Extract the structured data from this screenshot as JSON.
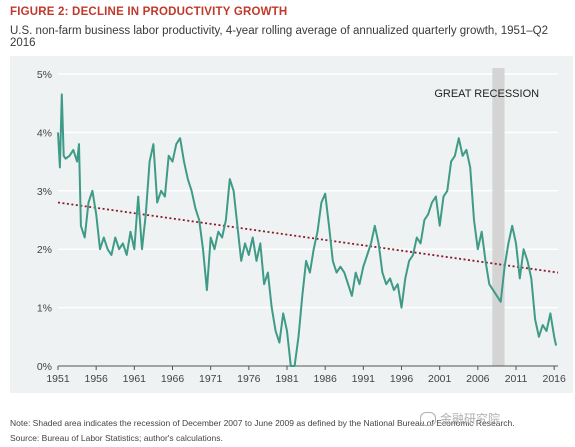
{
  "figure": {
    "title": "FIGURE 2: DECLINE IN PRODUCTIVITY GROWTH",
    "subtitle": "U.S. non-farm business labor productivity, 4-year rolling average of annualized quarterly growth, 1951–Q2 2016",
    "note": "Note: Shaded area indicates the recession of December 2007 to June 2009 as defined by the National Bureau of Economic Research.",
    "source": "Source: Bureau of Labor Statistics; author's calculations.",
    "watermark": "金融研究院"
  },
  "colors": {
    "line": "#3f9b87",
    "trend": "#8b1a2b",
    "recession": "#d4d4d4",
    "panel": "#eef2f2",
    "grid": "#ffffff",
    "title": "#c0392b"
  },
  "chart_data": {
    "type": "line",
    "title": "FIGURE 2: DECLINE IN PRODUCTIVITY GROWTH",
    "xlabel": "",
    "ylabel": "",
    "xlim": [
      1951,
      2016.5
    ],
    "ylim": [
      0,
      5
    ],
    "x_ticks": [
      1951,
      1956,
      1961,
      1966,
      1971,
      1976,
      1981,
      1986,
      1991,
      1996,
      2001,
      2006,
      2011,
      2016
    ],
    "y_ticks": [
      0,
      1,
      2,
      3,
      4,
      5
    ],
    "y_tick_labels": [
      "0%",
      "1%",
      "2%",
      "3%",
      "4%",
      "5%"
    ],
    "grid": true,
    "annotation": "GREAT RECESSION",
    "recession": [
      2007.9,
      2009.5
    ],
    "trend": [
      [
        1951,
        2.8
      ],
      [
        2016.5,
        1.6
      ]
    ],
    "series": [
      {
        "points": [
          [
            1951,
            4.0
          ],
          [
            1951.25,
            3.4
          ],
          [
            1951.5,
            4.65
          ],
          [
            1951.75,
            3.6
          ],
          [
            1952,
            3.55
          ],
          [
            1952.5,
            3.6
          ],
          [
            1953,
            3.7
          ],
          [
            1953.5,
            3.5
          ],
          [
            1953.75,
            3.8
          ],
          [
            1954,
            2.4
          ],
          [
            1954.5,
            2.2
          ],
          [
            1955,
            2.8
          ],
          [
            1955.5,
            3.0
          ],
          [
            1956,
            2.6
          ],
          [
            1956.5,
            2.0
          ],
          [
            1957,
            2.2
          ],
          [
            1957.5,
            2.0
          ],
          [
            1958,
            1.9
          ],
          [
            1958.5,
            2.2
          ],
          [
            1959,
            2.0
          ],
          [
            1959.5,
            2.1
          ],
          [
            1960,
            1.9
          ],
          [
            1960.5,
            2.3
          ],
          [
            1961,
            2.0
          ],
          [
            1961.5,
            2.9
          ],
          [
            1962,
            2.0
          ],
          [
            1962.5,
            2.6
          ],
          [
            1963,
            3.5
          ],
          [
            1963.5,
            3.8
          ],
          [
            1964,
            2.8
          ],
          [
            1964.5,
            3.0
          ],
          [
            1965,
            2.9
          ],
          [
            1965.5,
            3.6
          ],
          [
            1966,
            3.5
          ],
          [
            1966.5,
            3.8
          ],
          [
            1967,
            3.9
          ],
          [
            1967.5,
            3.5
          ],
          [
            1968,
            3.2
          ],
          [
            1968.5,
            3.0
          ],
          [
            1969,
            2.7
          ],
          [
            1969.5,
            2.5
          ],
          [
            1970,
            2.0
          ],
          [
            1970.5,
            1.3
          ],
          [
            1971,
            2.2
          ],
          [
            1971.5,
            2.0
          ],
          [
            1972,
            2.3
          ],
          [
            1972.5,
            2.2
          ],
          [
            1973,
            2.5
          ],
          [
            1973.5,
            3.2
          ],
          [
            1974,
            3.0
          ],
          [
            1974.5,
            2.4
          ],
          [
            1975,
            1.8
          ],
          [
            1975.5,
            2.1
          ],
          [
            1976,
            1.9
          ],
          [
            1976.5,
            2.2
          ],
          [
            1977,
            1.8
          ],
          [
            1977.5,
            2.1
          ],
          [
            1978,
            1.4
          ],
          [
            1978.5,
            1.6
          ],
          [
            1979,
            1.0
          ],
          [
            1979.5,
            0.6
          ],
          [
            1980,
            0.4
          ],
          [
            1980.5,
            0.9
          ],
          [
            1981,
            0.6
          ],
          [
            1981.5,
            0.0
          ],
          [
            1982,
            0.0
          ],
          [
            1982.5,
            0.5
          ],
          [
            1983,
            1.2
          ],
          [
            1983.5,
            1.8
          ],
          [
            1984,
            1.6
          ],
          [
            1984.5,
            2.0
          ],
          [
            1985,
            2.3
          ],
          [
            1985.5,
            2.8
          ],
          [
            1986,
            2.95
          ],
          [
            1986.5,
            2.4
          ],
          [
            1987,
            1.8
          ],
          [
            1987.5,
            1.6
          ],
          [
            1988,
            1.7
          ],
          [
            1988.5,
            1.6
          ],
          [
            1989,
            1.4
          ],
          [
            1989.5,
            1.2
          ],
          [
            1990,
            1.6
          ],
          [
            1990.5,
            1.4
          ],
          [
            1991,
            1.7
          ],
          [
            1991.5,
            1.9
          ],
          [
            1992,
            2.1
          ],
          [
            1992.5,
            2.4
          ],
          [
            1993,
            2.1
          ],
          [
            1993.5,
            1.6
          ],
          [
            1994,
            1.4
          ],
          [
            1994.5,
            1.5
          ],
          [
            1995,
            1.3
          ],
          [
            1995.5,
            1.4
          ],
          [
            1996,
            1.0
          ],
          [
            1996.5,
            1.5
          ],
          [
            1997,
            1.8
          ],
          [
            1997.5,
            1.9
          ],
          [
            1998,
            2.2
          ],
          [
            1998.5,
            2.1
          ],
          [
            1999,
            2.5
          ],
          [
            1999.5,
            2.6
          ],
          [
            2000,
            2.8
          ],
          [
            2000.5,
            2.9
          ],
          [
            2001,
            2.4
          ],
          [
            2001.5,
            2.9
          ],
          [
            2002,
            3.0
          ],
          [
            2002.5,
            3.5
          ],
          [
            2003,
            3.6
          ],
          [
            2003.5,
            3.9
          ],
          [
            2004,
            3.6
          ],
          [
            2004.5,
            3.7
          ],
          [
            2005,
            3.4
          ],
          [
            2005.5,
            2.5
          ],
          [
            2006,
            2.0
          ],
          [
            2006.5,
            2.3
          ],
          [
            2007,
            1.8
          ],
          [
            2007.5,
            1.4
          ],
          [
            2008,
            1.3
          ],
          [
            2008.5,
            1.2
          ],
          [
            2009,
            1.1
          ],
          [
            2009.5,
            1.7
          ],
          [
            2010,
            2.1
          ],
          [
            2010.5,
            2.4
          ],
          [
            2011,
            2.1
          ],
          [
            2011.5,
            1.5
          ],
          [
            2012,
            2.0
          ],
          [
            2012.5,
            1.8
          ],
          [
            2013,
            1.5
          ],
          [
            2013.5,
            0.8
          ],
          [
            2014,
            0.5
          ],
          [
            2014.5,
            0.7
          ],
          [
            2015,
            0.6
          ],
          [
            2015.5,
            0.9
          ],
          [
            2016,
            0.5
          ],
          [
            2016.25,
            0.35
          ]
        ]
      }
    ]
  }
}
